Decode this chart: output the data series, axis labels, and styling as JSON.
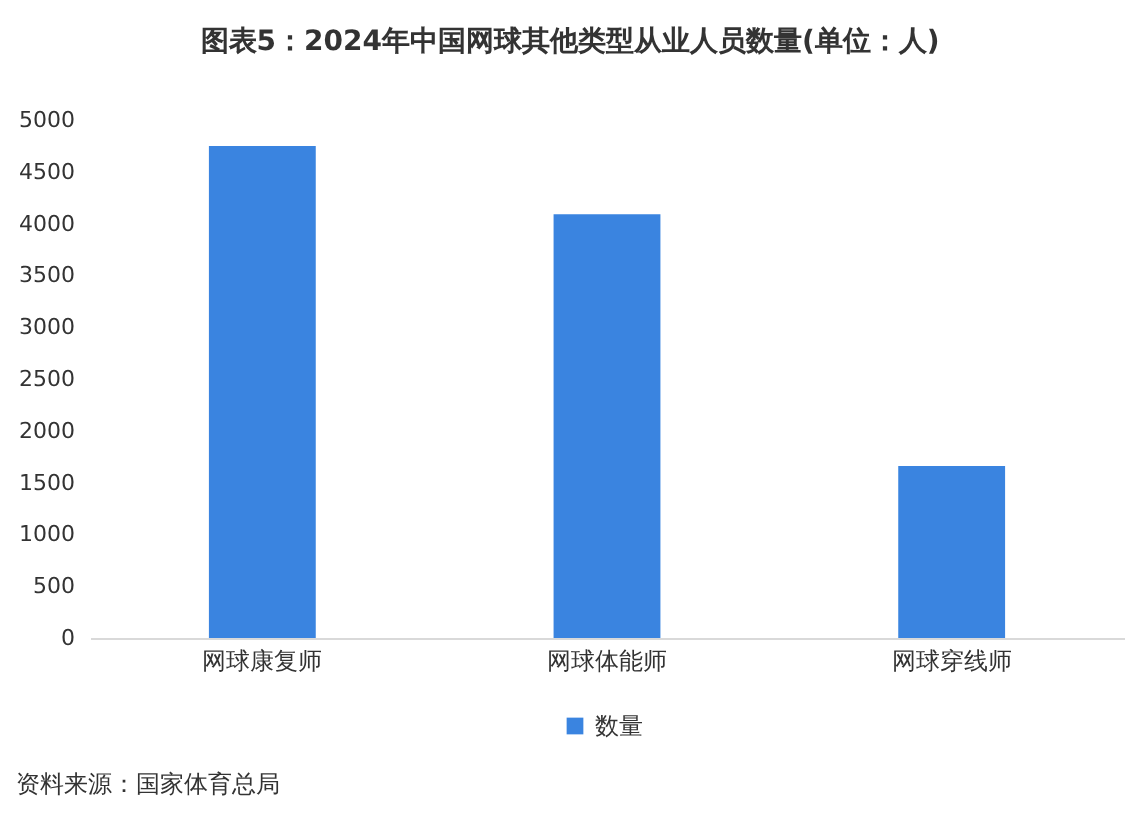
{
  "chart_data": {
    "type": "bar",
    "title": "图表5：2024年中国网球其他类型从业人员数量(单位：人)",
    "categories": [
      "网球康复师",
      "网球体能师",
      "网球穿线师"
    ],
    "series": [
      {
        "name": "数量",
        "color": "#3a84e0",
        "values": [
          4750,
          4090,
          1660
        ]
      }
    ],
    "ylim": [
      0,
      5000
    ],
    "yticks": [
      0,
      500,
      1000,
      1500,
      2000,
      2500,
      3000,
      3500,
      4000,
      4500,
      5000
    ],
    "legend": "bottom",
    "annotations": [
      "资料来源：国家体育总局"
    ]
  }
}
